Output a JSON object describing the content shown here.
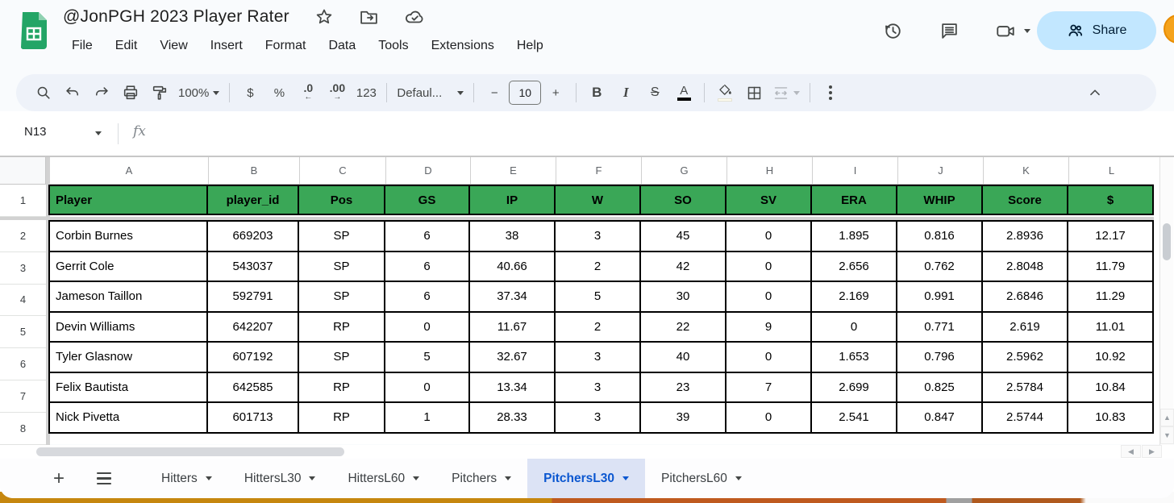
{
  "titlebar": {
    "title": "@JonPGH 2023 Player Rater",
    "menus": [
      "File",
      "Edit",
      "View",
      "Insert",
      "Format",
      "Data",
      "Tools",
      "Extensions",
      "Help"
    ],
    "share_label": "Share"
  },
  "toolbar": {
    "zoom": "100%",
    "currency": "$",
    "percent": "%",
    "decimal_decrease": ".0",
    "decimal_decrease_arrow": "←",
    "decimal_increase": ".00",
    "decimal_increase_arrow": "→",
    "number_format": "123",
    "font_name": "Defaul...",
    "font_size_decrease": "−",
    "font_size": "10",
    "font_size_increase": "+",
    "bold": "B",
    "italic": "I",
    "strikethrough": "S",
    "text_color": "A"
  },
  "formula_bar": {
    "cell_ref": "N13",
    "fx_label": "fx"
  },
  "grid": {
    "columns": [
      "A",
      "B",
      "C",
      "D",
      "E",
      "F",
      "G",
      "H",
      "I",
      "J",
      "K",
      "L"
    ],
    "row_numbers": [
      "1",
      "2",
      "3",
      "4",
      "5",
      "6",
      "7",
      "8"
    ],
    "header_row": [
      "Player",
      "player_id",
      "Pos",
      "GS",
      "IP",
      "W",
      "SO",
      "SV",
      "ERA",
      "WHIP",
      "Score",
      "$"
    ],
    "rows": [
      [
        "Corbin Burnes",
        "669203",
        "SP",
        "6",
        "38",
        "3",
        "45",
        "0",
        "1.895",
        "0.816",
        "2.8936",
        "12.17"
      ],
      [
        "Gerrit Cole",
        "543037",
        "SP",
        "6",
        "40.66",
        "2",
        "42",
        "0",
        "2.656",
        "0.762",
        "2.8048",
        "11.79"
      ],
      [
        "Jameson Taillon",
        "592791",
        "SP",
        "6",
        "37.34",
        "5",
        "30",
        "0",
        "2.169",
        "0.991",
        "2.6846",
        "11.29"
      ],
      [
        "Devin Williams",
        "642207",
        "RP",
        "0",
        "11.67",
        "2",
        "22",
        "9",
        "0",
        "0.771",
        "2.619",
        "11.01"
      ],
      [
        "Tyler Glasnow",
        "607192",
        "SP",
        "5",
        "32.67",
        "3",
        "40",
        "0",
        "1.653",
        "0.796",
        "2.5962",
        "10.92"
      ],
      [
        "Felix Bautista",
        "642585",
        "RP",
        "0",
        "13.34",
        "3",
        "23",
        "7",
        "2.699",
        "0.825",
        "2.5784",
        "10.84"
      ],
      [
        "Nick Pivetta",
        "601713",
        "RP",
        "1",
        "28.33",
        "3",
        "39",
        "0",
        "2.541",
        "0.847",
        "2.5744",
        "10.83"
      ]
    ],
    "colors": {
      "header_bg": "#3aa757",
      "header_text": "#ffff00",
      "cell_border": "#000000"
    }
  },
  "tabbar": {
    "tabs": [
      {
        "label": "Hitters",
        "active": false
      },
      {
        "label": "HittersL30",
        "active": false
      },
      {
        "label": "HittersL60",
        "active": false
      },
      {
        "label": "Pitchers",
        "active": false
      },
      {
        "label": "PitchersL30",
        "active": true
      },
      {
        "label": "PitchersL60",
        "active": false
      }
    ],
    "colors": {
      "active_text": "#0b57d0",
      "active_bg": "#dce3f5"
    }
  }
}
